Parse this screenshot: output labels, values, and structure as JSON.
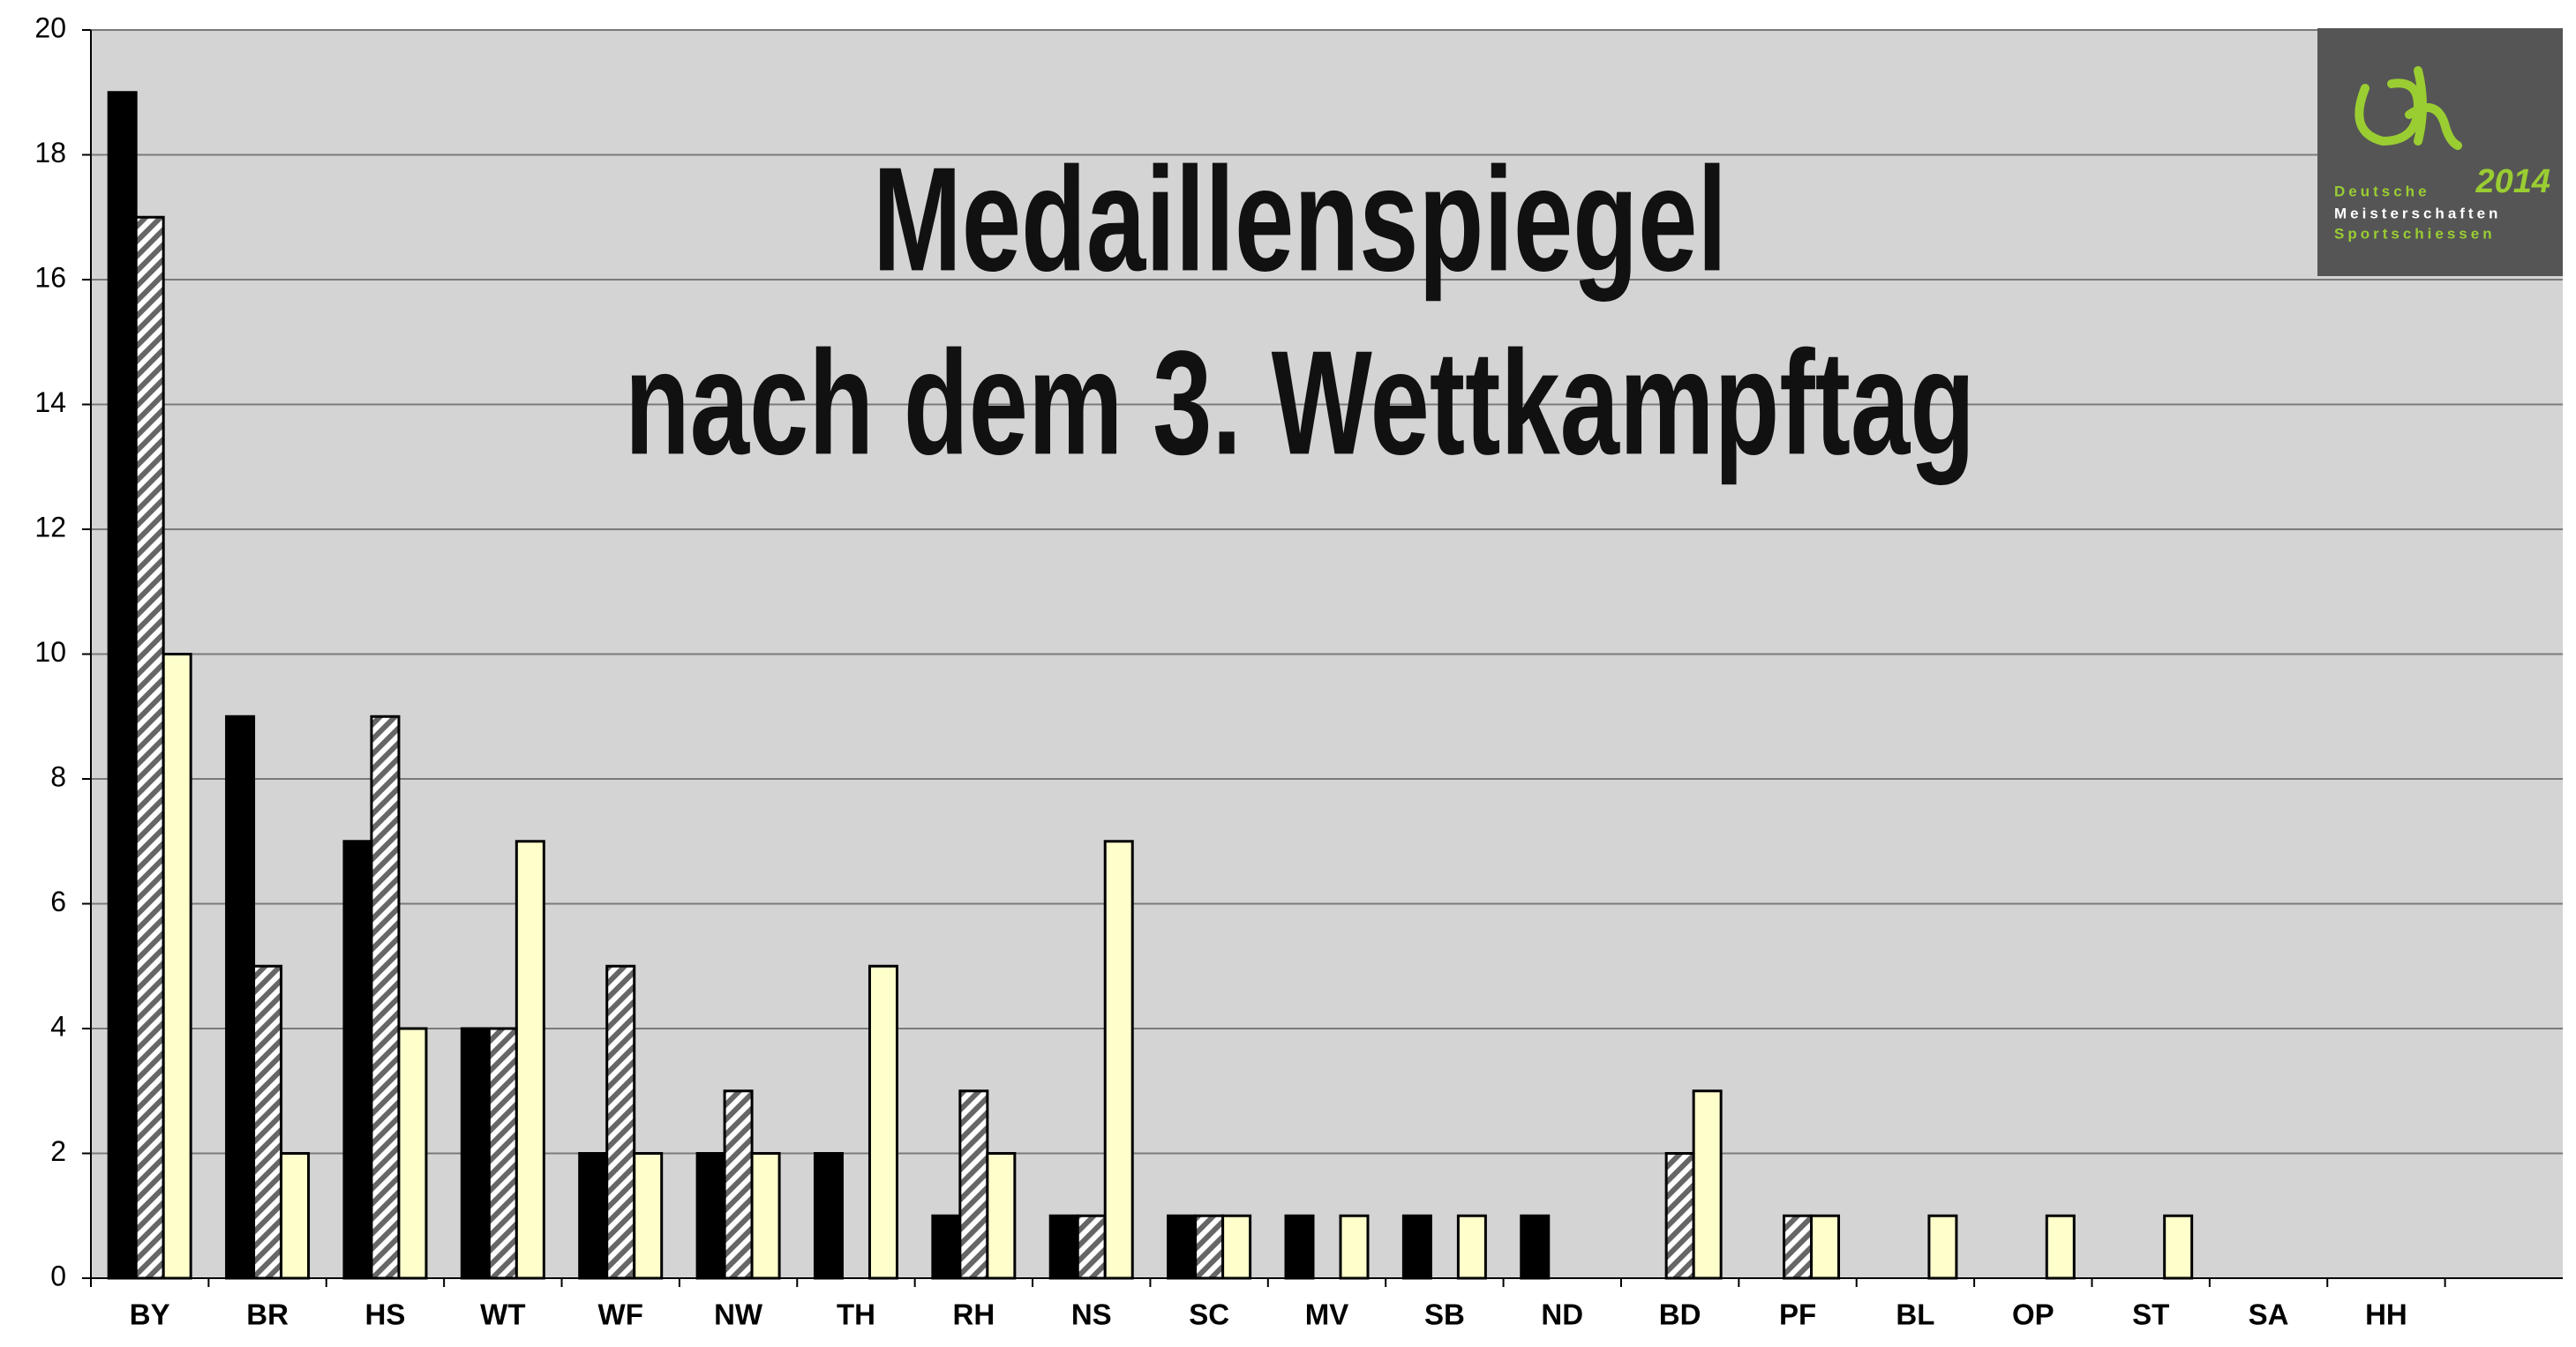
{
  "chart_data": {
    "type": "bar",
    "title": "Medaillenspiegel",
    "subtitle": "nach dem 3. Wettkampftag",
    "categories": [
      "BY",
      "BR",
      "HS",
      "WT",
      "WF",
      "NW",
      "TH",
      "RH",
      "NS",
      "SC",
      "MV",
      "SB",
      "ND",
      "BD",
      "PF",
      "BL",
      "OP",
      "ST",
      "SA",
      "HH",
      null
    ],
    "series": [
      {
        "color": "#000000",
        "hatch": false,
        "values": [
          19,
          9,
          7,
          4,
          2,
          2,
          2,
          1,
          1,
          1,
          1,
          1,
          1,
          0,
          0,
          0,
          0,
          0,
          0,
          0,
          null
        ]
      },
      {
        "color": "#ffffff",
        "hatch": true,
        "values": [
          17,
          5,
          9,
          4,
          5,
          3,
          0,
          3,
          1,
          1,
          0,
          0,
          0,
          2,
          1,
          0,
          0,
          0,
          0,
          0,
          null
        ]
      },
      {
        "color": "#ffffcc",
        "hatch": false,
        "values": [
          10,
          2,
          4,
          7,
          2,
          2,
          5,
          2,
          7,
          1,
          1,
          1,
          0,
          3,
          1,
          1,
          1,
          1,
          0,
          0,
          null
        ]
      }
    ],
    "ylim": [
      0,
      20
    ],
    "yticks": [
      0,
      2,
      4,
      6,
      8,
      10,
      12,
      14,
      16,
      18,
      20
    ],
    "grid": true,
    "background": "#d4d4d4"
  },
  "logo": {
    "line1": "Deutsche",
    "year": "2014",
    "line2": "Meisterschaften",
    "line3": "Sportschiessen"
  }
}
